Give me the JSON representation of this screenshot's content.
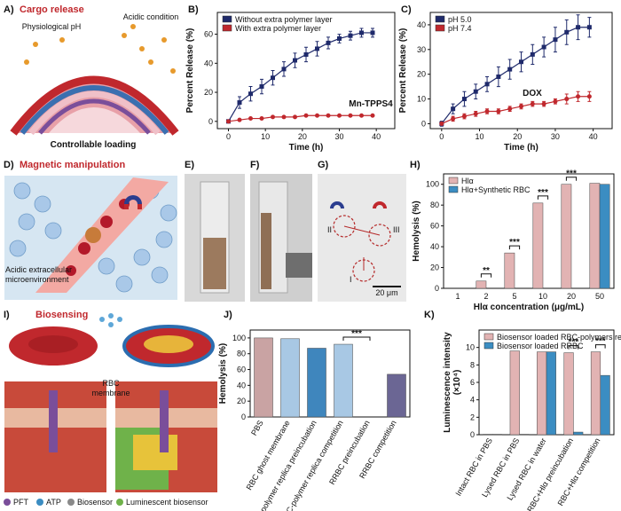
{
  "chart_data": [
    {
      "type": "line",
      "label": "B)",
      "xlabel": "Time (h)",
      "ylabel": "Percent Release (%)",
      "annotations": [
        "Mn-TPPS4"
      ],
      "x": [
        0,
        3,
        6,
        9,
        12,
        15,
        18,
        21,
        24,
        27,
        30,
        33,
        36,
        39
      ],
      "xlim": [
        -3,
        45
      ],
      "xticks": [
        0,
        10,
        20,
        30,
        40
      ],
      "ylim": [
        -5,
        75
      ],
      "yticks": [
        0,
        20,
        40,
        60
      ],
      "legend": "upper left",
      "series": [
        {
          "name": "Without extra polymer layer",
          "color": "#1f2a6b",
          "marker": "square",
          "values": [
            0,
            13,
            19,
            24,
            30,
            36,
            42,
            46,
            50,
            54,
            57,
            59,
            61,
            61
          ],
          "errors": [
            1,
            4,
            5,
            5,
            5,
            5,
            5,
            5,
            5,
            4,
            3,
            3,
            3,
            3
          ]
        },
        {
          "name": "With extra polymer layer",
          "color": "#c0282d",
          "marker": "circle",
          "values": [
            0,
            1,
            2,
            2,
            3,
            3,
            3,
            4,
            4,
            4,
            4,
            4,
            4,
            4
          ]
        }
      ]
    },
    {
      "type": "line",
      "label": "C)",
      "xlabel": "Time (h)",
      "ylabel": "Percent Release (%)",
      "annotations": [
        "DOX"
      ],
      "x": [
        0,
        3,
        6,
        9,
        12,
        15,
        18,
        21,
        24,
        27,
        30,
        33,
        36,
        39
      ],
      "xlim": [
        -3,
        45
      ],
      "xticks": [
        0,
        10,
        20,
        30,
        40
      ],
      "ylim": [
        -2,
        45
      ],
      "yticks": [
        0,
        10,
        20,
        30,
        40
      ],
      "legend": "upper left",
      "series": [
        {
          "name": "pH 5.0",
          "color": "#1f2a6b",
          "marker": "square",
          "values": [
            0,
            6,
            10,
            13,
            16,
            19,
            22,
            25,
            28,
            31,
            34,
            37,
            39,
            39
          ],
          "errors": [
            1,
            2,
            3,
            3,
            3,
            4,
            4,
            4,
            4,
            4,
            5,
            5,
            5,
            4
          ]
        },
        {
          "name": "pH 7.4",
          "color": "#c0282d",
          "marker": "circle",
          "values": [
            0,
            2,
            3,
            4,
            5,
            5,
            6,
            7,
            8,
            8,
            9,
            10,
            11,
            11
          ],
          "errors": [
            0.5,
            1,
            1,
            1,
            1,
            1,
            1,
            1,
            1,
            1,
            1,
            2,
            2,
            2
          ]
        }
      ]
    },
    {
      "type": "bar",
      "label": "H)",
      "xlabel": "Hlα concentration (μg/mL)",
      "ylabel": "Hemolysis (%)",
      "annotations": [
        "**",
        "***",
        "***",
        "***"
      ],
      "categories": [
        "1",
        "2",
        "5",
        "10",
        "20",
        "50"
      ],
      "ylim": [
        0,
        110
      ],
      "yticks": [
        0,
        20,
        40,
        60,
        80,
        100
      ],
      "legend": "upper left",
      "series": [
        {
          "name": "Hlα",
          "color": "#e2b3b3",
          "values": [
            0,
            7,
            34,
            82,
            100,
            101
          ]
        },
        {
          "name": "Hlα+Synthetic RBC",
          "color": "#3b8dc2",
          "values": [
            0,
            0,
            0,
            0,
            0,
            100
          ]
        }
      ]
    },
    {
      "type": "bar",
      "label": "J)",
      "ylabel": "Hemolysis (%)",
      "annotations": [
        "***"
      ],
      "categories": [
        "PBS",
        "RBC ghost membrane",
        "RBC-polymer replica preincubation",
        "RBC-polymer replica competition",
        "RRBC preincubation",
        "RRBC competition"
      ],
      "values": [
        100,
        99,
        87,
        92,
        0,
        54
      ],
      "colors": [
        "#c9a3a3",
        "#a8c8e4",
        "#3f86bd",
        "#a8c8e4",
        "#8d7fb0",
        "#6b6694"
      ],
      "ylim": [
        0,
        110
      ],
      "yticks": [
        0,
        20,
        40,
        60,
        80,
        100
      ]
    },
    {
      "type": "bar",
      "label": "K)",
      "ylabel": [
        "Luminescence intensity",
        "(×10⁴)"
      ],
      "annotations": [
        "***",
        "***"
      ],
      "categories": [
        "Intact RBC in PBS",
        "Lysed RBC in PBS",
        "Lysed RBC in water",
        "RBC+Hlα preincubation",
        "RBC+Hlα competition"
      ],
      "ylim": [
        0,
        12
      ],
      "yticks": [
        0,
        2,
        4,
        6,
        8,
        10
      ],
      "legend": "upper left",
      "series": [
        {
          "name": "Biosensor loaded RBC-polymers replica",
          "color": "#e2b3b3",
          "values": [
            0.05,
            9.6,
            9.5,
            9.4,
            9.5
          ]
        },
        {
          "name": "Biosensor loaded RRBC",
          "color": "#3b8dc2",
          "values": [
            0.05,
            0.05,
            9.5,
            0.3,
            6.8
          ]
        }
      ]
    }
  ],
  "panels": {
    "A": {
      "label": "A)",
      "title": "Cargo release",
      "texts": [
        "Physiological pH",
        "Acidic condition",
        "Controllable loading"
      ]
    },
    "D": {
      "label": "D)",
      "title": "Magnetic manipulation",
      "texts": [
        "Acidic extracellular",
        "microenvironment"
      ]
    },
    "E": {
      "label": "E)"
    },
    "F": {
      "label": "F)"
    },
    "G": {
      "label": "G)",
      "texts": [
        "II",
        "III",
        "I"
      ],
      "scale": "20 μm"
    },
    "I": {
      "label": "I)",
      "title": "Biosensing",
      "texts": [
        "RBC",
        "membrane"
      ],
      "legend": [
        "PFT",
        "ATP",
        "Biosensor",
        "Luminescent biosensor"
      ]
    }
  }
}
